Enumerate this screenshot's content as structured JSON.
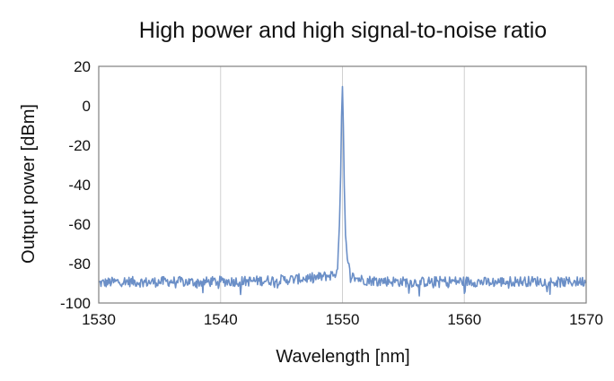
{
  "chart_data": {
    "type": "line",
    "title": "High power and high signal-to-noise ratio",
    "xlabel": "Wavelength [nm]",
    "ylabel": "Output power [dBm]",
    "xlim": [
      1530,
      1570
    ],
    "ylim": [
      -100,
      20
    ],
    "x_ticks": [
      1530,
      1540,
      1550,
      1560,
      1570
    ],
    "y_ticks": [
      20,
      0,
      -20,
      -40,
      -60,
      -80,
      -100
    ],
    "grid": "vertical",
    "legend": "none",
    "series": [
      {
        "color": "#6b8fc7",
        "noise_floor_dbm": -89,
        "points": [
          [
            1530,
            -90
          ],
          [
            1532,
            -89
          ],
          [
            1534,
            -89.5
          ],
          [
            1536,
            -89
          ],
          [
            1538,
            -89.5
          ],
          [
            1540,
            -89
          ],
          [
            1542,
            -89
          ],
          [
            1544,
            -88.5
          ],
          [
            1546,
            -88
          ],
          [
            1548,
            -87
          ],
          [
            1549,
            -86
          ],
          [
            1549.4,
            -85
          ],
          [
            1549.6,
            -83
          ],
          [
            1549.75,
            -60
          ],
          [
            1549.85,
            -35
          ],
          [
            1549.93,
            -5
          ],
          [
            1550.0,
            10
          ],
          [
            1550.07,
            -10
          ],
          [
            1550.15,
            -40
          ],
          [
            1550.25,
            -65
          ],
          [
            1550.4,
            -78
          ],
          [
            1550.6,
            -84
          ],
          [
            1550.9,
            -87
          ],
          [
            1551.5,
            -88
          ],
          [
            1552,
            -88.5
          ],
          [
            1554,
            -89
          ],
          [
            1556,
            -89.5
          ],
          [
            1558,
            -89
          ],
          [
            1560,
            -89
          ],
          [
            1562,
            -89.5
          ],
          [
            1564,
            -89
          ],
          [
            1566,
            -89
          ],
          [
            1568,
            -89.5
          ],
          [
            1570,
            -89
          ]
        ]
      }
    ]
  }
}
